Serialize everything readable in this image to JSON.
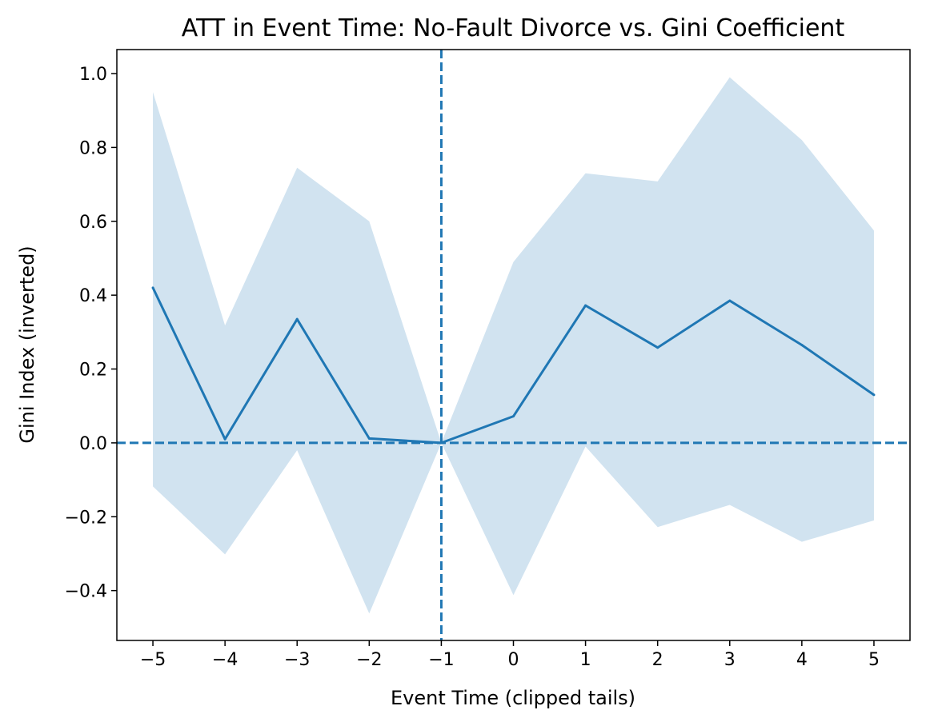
{
  "chart_data": {
    "type": "line",
    "title": "ATT in Event Time: No-Fault Divorce vs. Gini Coefficient",
    "xlabel": "Event Time (clipped tails)",
    "ylabel": "Gini Index (inverted)",
    "x": [
      -5,
      -4,
      -3,
      -2,
      -1,
      0,
      1,
      2,
      3,
      4,
      5
    ],
    "series": [
      {
        "values": [
          0.42,
          0.01,
          0.335,
          0.012,
          0.0,
          0.072,
          0.372,
          0.258,
          0.385,
          0.265,
          0.13
        ],
        "ci_lower": [
          -0.118,
          -0.302,
          -0.02,
          -0.462,
          0.0,
          -0.412,
          -0.01,
          -0.228,
          -0.168,
          -0.268,
          -0.21
        ],
        "ci_upper": [
          0.95,
          0.318,
          0.745,
          0.6,
          0.0,
          0.49,
          0.73,
          0.708,
          0.99,
          0.82,
          0.575
        ],
        "color": "#1f77b4",
        "band_color": "#d1e3f0"
      }
    ],
    "xticks": [
      -5,
      -4,
      -3,
      -2,
      -1,
      0,
      1,
      2,
      3,
      4,
      5
    ],
    "xtick_labels": [
      "−5",
      "−4",
      "−3",
      "−2",
      "−1",
      "0",
      "1",
      "2",
      "3",
      "4",
      "5"
    ],
    "yticks": [
      -0.4,
      -0.2,
      0.0,
      0.2,
      0.4,
      0.6,
      0.8,
      1.0
    ],
    "ytick_labels": [
      "−0.4",
      "−0.2",
      "0.0",
      "0.2",
      "0.4",
      "0.6",
      "0.8",
      "1.0"
    ],
    "xlim": [
      -5.5,
      5.5
    ],
    "ylim": [
      -0.535,
      1.065
    ],
    "reference_lines": {
      "horizontal_y": 0.0,
      "vertical_x": -1,
      "style": "dashed",
      "color": "#1f77b4"
    },
    "grid": false,
    "legend": "none"
  }
}
